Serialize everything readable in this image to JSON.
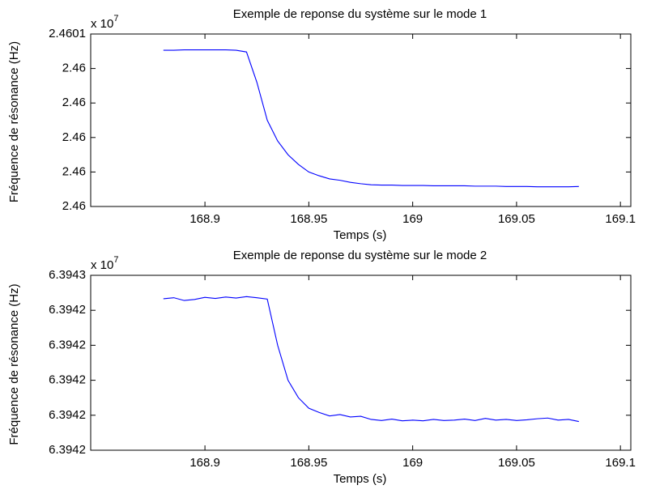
{
  "chart_data": [
    {
      "type": "line",
      "title": "Exemple de reponse du système sur le mode 1",
      "xlabel": "Temps (s)",
      "ylabel": "Fréquence de résonance (Hz)",
      "y_multiplier": {
        "base": "x 10",
        "power": "7"
      },
      "x": [
        168.88,
        168.885,
        168.89,
        168.895,
        168.9,
        168.905,
        168.91,
        168.915,
        168.92,
        168.925,
        168.93,
        168.935,
        168.94,
        168.945,
        168.95,
        168.955,
        168.96,
        168.965,
        168.97,
        168.975,
        168.98,
        168.985,
        168.99,
        168.995,
        169.0,
        169.005,
        169.01,
        169.015,
        169.02,
        169.025,
        169.03,
        169.035,
        169.04,
        169.045,
        169.05,
        169.055,
        169.06,
        169.065,
        169.07,
        169.075,
        169.08
      ],
      "series": [
        {
          "color": "#0000ff",
          "values": [
            24600453,
            24600453,
            24600454,
            24600454,
            24600454,
            24600454,
            24600454,
            24600453,
            24600448,
            24600360,
            24600250,
            24600190,
            24600150,
            24600122,
            24600100,
            24600089,
            24600080,
            24600076,
            24600070,
            24600066,
            24600063,
            24600062,
            24600062,
            24600061,
            24600061,
            24600061,
            24600060,
            24600060,
            24600060,
            24600060,
            24600059,
            24600059,
            24600059,
            24600058,
            24600058,
            24600058,
            24600057,
            24600057,
            24600057,
            24600057,
            24600058
          ]
        }
      ],
      "xlim": [
        168.845,
        169.105
      ],
      "xticks": [
        168.9,
        168.95,
        169,
        169.05,
        169.1
      ],
      "ylim": [
        24600000,
        24600500
      ],
      "yticks": [
        {
          "value": 24600000,
          "label": "2.46"
        },
        {
          "value": 24600100,
          "label": "2.46"
        },
        {
          "value": 24600200,
          "label": "2.46"
        },
        {
          "value": 24600300,
          "label": "2.46"
        },
        {
          "value": 24600400,
          "label": "2.46"
        },
        {
          "value": 24600500,
          "label": "2.4601"
        }
      ],
      "grid": false
    },
    {
      "type": "line",
      "title": "Exemple de reponse du système sur le mode 2",
      "xlabel": "Temps (s)",
      "ylabel": "Fréquence de résonance (Hz)",
      "y_multiplier": {
        "base": "x 10",
        "power": "7"
      },
      "x": [
        168.88,
        168.885,
        168.89,
        168.895,
        168.9,
        168.905,
        168.91,
        168.915,
        168.92,
        168.925,
        168.93,
        168.935,
        168.94,
        168.945,
        168.95,
        168.955,
        168.96,
        168.965,
        168.97,
        168.975,
        168.98,
        168.985,
        168.99,
        168.995,
        169.0,
        169.005,
        169.01,
        169.015,
        169.02,
        169.025,
        169.03,
        169.035,
        169.04,
        169.045,
        169.05,
        169.055,
        169.06,
        169.065,
        169.07,
        169.075,
        169.08
      ],
      "series": [
        {
          "color": "#0000ff",
          "values": [
            63942433,
            63942436,
            63942428,
            63942431,
            63942437,
            63942434,
            63942438,
            63942435,
            63942439,
            63942436,
            63942432,
            63942300,
            63942200,
            63942150,
            63942120,
            63942108,
            63942098,
            63942102,
            63942095,
            63942097,
            63942088,
            63942085,
            63942089,
            63942084,
            63942086,
            63942084,
            63942088,
            63942085,
            63942086,
            63942089,
            63942085,
            63942091,
            63942086,
            63942088,
            63942085,
            63942087,
            63942090,
            63942092,
            63942086,
            63942088,
            63942082
          ]
        }
      ],
      "xlim": [
        168.845,
        169.105
      ],
      "xticks": [
        168.9,
        168.95,
        169,
        169.05,
        169.1
      ],
      "ylim": [
        63942000,
        63942500
      ],
      "yticks": [
        {
          "value": 63942000,
          "label": "6.3942"
        },
        {
          "value": 63942100,
          "label": "6.3942"
        },
        {
          "value": 63942200,
          "label": "6.3942"
        },
        {
          "value": 63942300,
          "label": "6.3942"
        },
        {
          "value": 63942400,
          "label": "6.3942"
        },
        {
          "value": 63942500,
          "label": "6.3943"
        }
      ],
      "grid": false
    }
  ]
}
